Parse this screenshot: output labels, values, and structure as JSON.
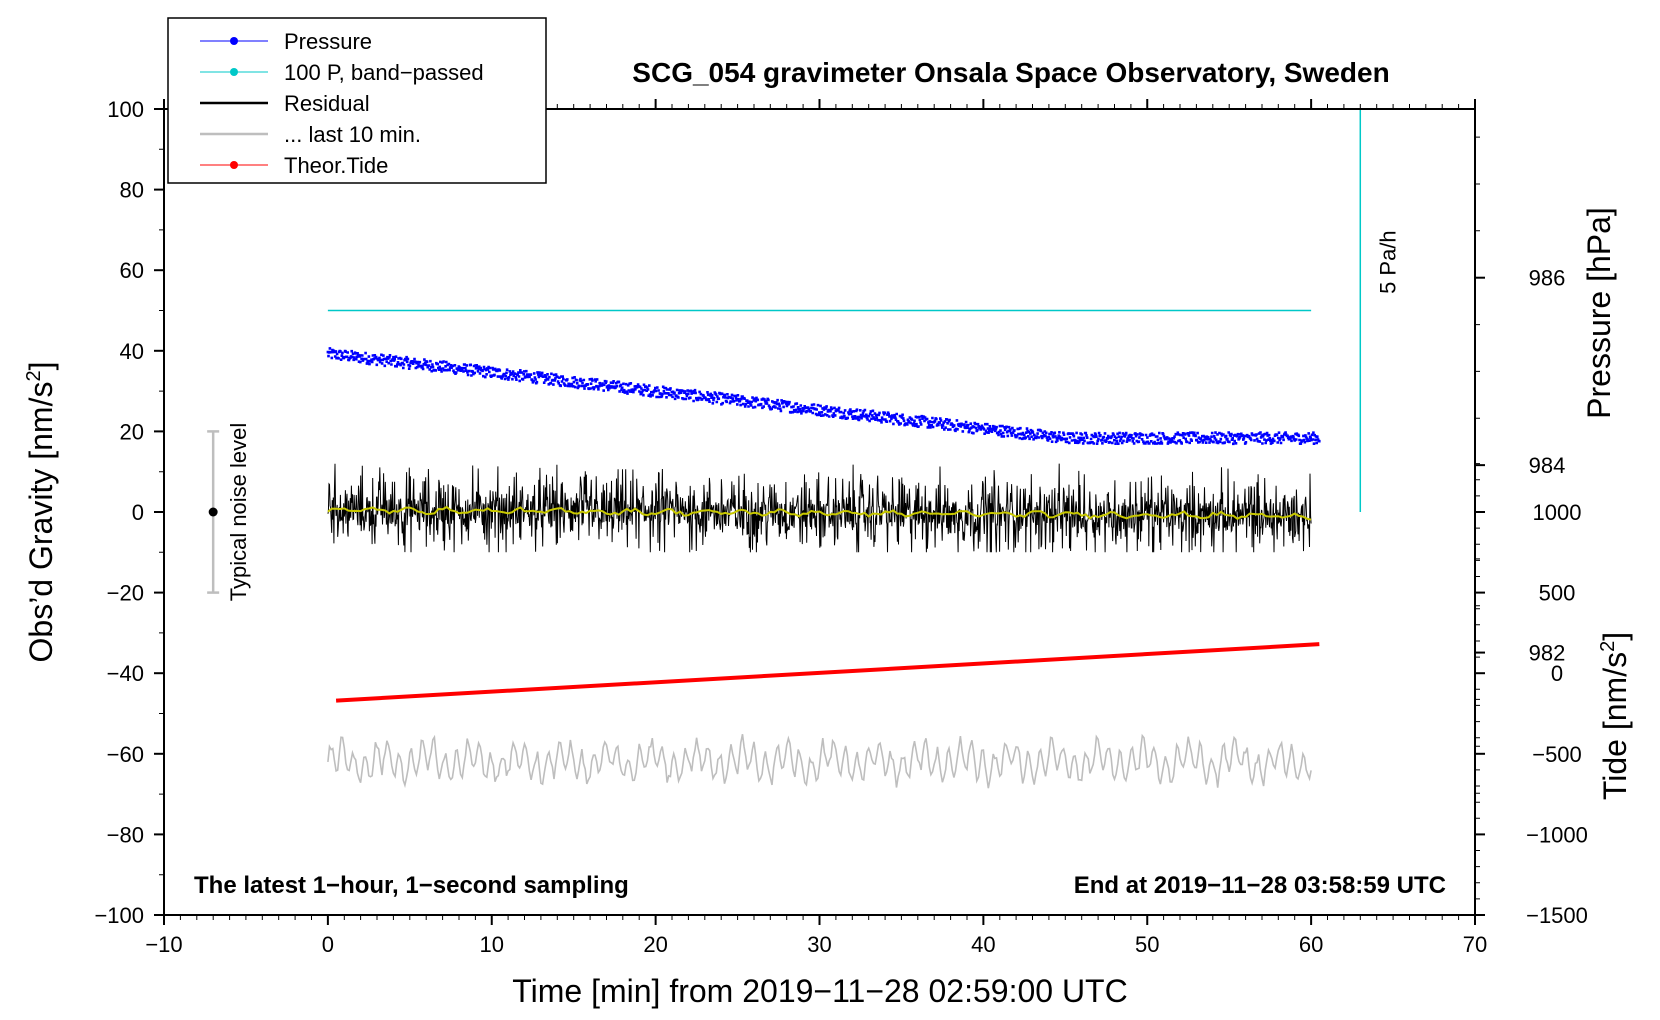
{
  "chart_data": {
    "type": "line",
    "title": "SCG_054 gravimeter Onsala Space Observatory, Sweden",
    "xlabel": "Time [min] from 2019−11−28 02:59:00 UTC",
    "ylabel_left": "Obs’d Gravity [nm/s",
    "ylabel_left_sup": "2",
    "ylabel_left_end": "]",
    "ylabel_right_pressure": "Pressure [hPa]",
    "ylabel_right_tide": "Tide [nm/s",
    "ylabel_right_tide_sup": "2",
    "ylabel_right_tide_end": "]",
    "xlim": [
      -10,
      70
    ],
    "ylim": [
      -100,
      100
    ],
    "pressure_ylim_hpa": [
      979.2,
      987.8
    ],
    "tide_ylim": [
      -1500,
      3500
    ],
    "x_ticks": [
      -10,
      0,
      10,
      20,
      30,
      40,
      50,
      60,
      70
    ],
    "x_tick_labels": [
      "−10",
      "0",
      "10",
      "20",
      "30",
      "40",
      "50",
      "60",
      "70"
    ],
    "y_ticks": [
      -100,
      -80,
      -60,
      -40,
      -20,
      0,
      20,
      40,
      60,
      80,
      100
    ],
    "y_tick_labels": [
      "−100",
      "−80",
      "−60",
      "−40",
      "−20",
      "0",
      "20",
      "40",
      "60",
      "80",
      "100"
    ],
    "pressure_ticks": [
      982,
      984,
      986
    ],
    "pressure_tick_labels": [
      "982",
      "984",
      "986"
    ],
    "tide_ticks": [
      -1500,
      -1000,
      -500,
      0,
      500,
      1000
    ],
    "tide_tick_labels": [
      "−1500",
      "−1000",
      "−500",
      "0",
      "500",
      "1000"
    ],
    "legend": {
      "position": "top-left",
      "entries": [
        {
          "label": "Pressure",
          "color": "#0000ff",
          "marker": true
        },
        {
          "label": "100 P, band−passed",
          "color": "#00c8c8",
          "marker": true
        },
        {
          "label": "Residual",
          "color": "#000000",
          "marker": false
        },
        {
          "label": "... last 10 min.",
          "color": "#bebebe",
          "marker": false
        },
        {
          "label": "Theor.Tide",
          "color": "#ff0000",
          "marker": true
        }
      ]
    },
    "series": [
      {
        "name": "Pressure",
        "unit": "hPa",
        "color": "#0000ff",
        "x": [
          0,
          10,
          20,
          30,
          40,
          45,
          50,
          60.5
        ],
        "values": [
          985.2,
          985.0,
          984.8,
          984.6,
          984.4,
          984.3,
          984.3,
          984.3
        ]
      },
      {
        "name": "100 P, band−passed",
        "unit": "nm/s2 axis",
        "color": "#00c8c8",
        "x": [
          0,
          60
        ],
        "values": [
          50,
          50
        ]
      },
      {
        "name": "Residual",
        "unit": "nm/s2",
        "color": "#000000",
        "x": [
          0,
          60
        ],
        "values": [
          0.5,
          -1.0
        ],
        "noise_range": [
          -10,
          12
        ]
      },
      {
        "name": "Residual smoothed",
        "unit": "nm/s2",
        "color": "#c8c800",
        "x": [
          0,
          60
        ],
        "values": [
          0.5,
          -1.0
        ]
      },
      {
        "name": "... last 10 min.",
        "unit": "nm/s2 axis",
        "color": "#bebebe",
        "x": [
          0,
          60
        ],
        "values": [
          -62,
          -62
        ],
        "noise_range": [
          -71,
          -55
        ]
      },
      {
        "name": "Theor.Tide",
        "unit": "nm/s2",
        "color": "#ff0000",
        "x": [
          0.5,
          60.5
        ],
        "values": [
          -170,
          180
        ]
      }
    ],
    "noise_bar": {
      "label": "Typical noise level",
      "x": -7,
      "center": 0,
      "low": -20,
      "high": 20
    },
    "rate_bar": {
      "label": "5 Pa/h",
      "x": 63,
      "from": 0,
      "to": 100
    },
    "annotations": {
      "left": "The latest 1−hour, 1−second sampling",
      "right": "End at 2019−11−28 03:58:59 UTC"
    }
  }
}
